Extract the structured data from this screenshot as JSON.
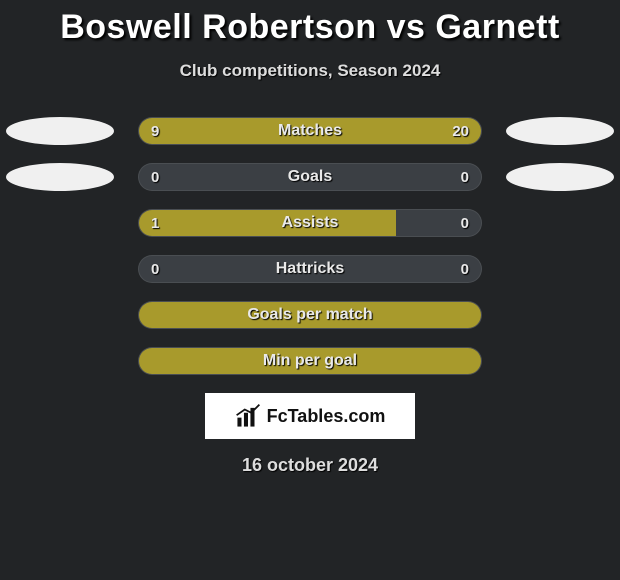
{
  "title": "Boswell Robertson vs Garnett",
  "subtitle": "Club competitions, Season 2024",
  "colors": {
    "bar_fill": "#a89a2c",
    "bar_empty": "#3b3f44",
    "background": "#222426",
    "oval": "#f0f0f0"
  },
  "rows": [
    {
      "label": "Matches",
      "left_val": "9",
      "right_val": "20",
      "left_pct": 31,
      "right_pct": 69,
      "show_ovals": true,
      "show_values": true
    },
    {
      "label": "Goals",
      "left_val": "0",
      "right_val": "0",
      "left_pct": 0,
      "right_pct": 0,
      "show_ovals": true,
      "show_values": true
    },
    {
      "label": "Assists",
      "left_val": "1",
      "right_val": "0",
      "left_pct": 75,
      "right_pct": 0,
      "show_ovals": false,
      "show_values": true
    },
    {
      "label": "Hattricks",
      "left_val": "0",
      "right_val": "0",
      "left_pct": 0,
      "right_pct": 0,
      "show_ovals": false,
      "show_values": true
    },
    {
      "label": "Goals per match",
      "left_val": "",
      "right_val": "",
      "left_pct": 100,
      "right_pct": 0,
      "show_ovals": false,
      "show_values": false
    },
    {
      "label": "Min per goal",
      "left_val": "",
      "right_val": "",
      "left_pct": 100,
      "right_pct": 0,
      "show_ovals": false,
      "show_values": false
    }
  ],
  "logo_text": "FcTables.com",
  "date": "16 october 2024"
}
